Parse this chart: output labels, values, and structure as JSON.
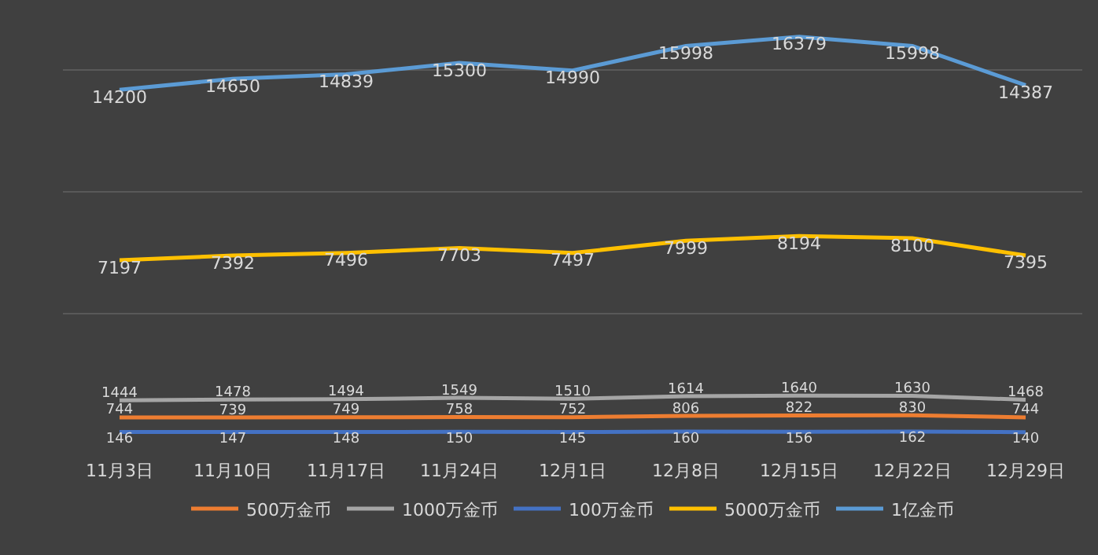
{
  "chart_data": {
    "type": "line",
    "categories": [
      "11月3日",
      "11月10日",
      "11月17日",
      "11月24日",
      "12月1日",
      "12月8日",
      "12月15日",
      "12月22日",
      "12月29日"
    ],
    "series": [
      {
        "name": "500万金币",
        "color": "#ed7d31",
        "values": [
          744,
          739,
          749,
          758,
          752,
          806,
          822,
          830,
          744
        ]
      },
      {
        "name": "1000万金币",
        "color": "#a5a5a5",
        "values": [
          1444,
          1478,
          1494,
          1549,
          1510,
          1614,
          1640,
          1630,
          1468
        ]
      },
      {
        "name": "100万金币",
        "color": "#4472c4",
        "values": [
          146,
          147,
          148,
          150,
          145,
          160,
          156,
          162,
          140
        ]
      },
      {
        "name": "5000万金币",
        "color": "#ffc000",
        "values": [
          7197,
          7392,
          7496,
          7703,
          7497,
          7999,
          8194,
          8100,
          7395
        ]
      },
      {
        "name": "1亿金币",
        "color": "#5b9bd5",
        "values": [
          14200,
          14650,
          14839,
          15300,
          14990,
          15998,
          16379,
          15998,
          14387
        ]
      }
    ],
    "tick_labels": "x",
    "grid": "y",
    "legend": "bottom",
    "data_labels": true,
    "marker": "none",
    "line_style": "solid"
  }
}
